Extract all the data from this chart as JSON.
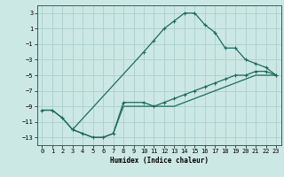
{
  "xlabel": "Humidex (Indice chaleur)",
  "xlim": [
    -0.5,
    23.5
  ],
  "ylim": [
    -14,
    4
  ],
  "xticks": [
    0,
    1,
    2,
    3,
    4,
    5,
    6,
    7,
    8,
    9,
    10,
    11,
    12,
    13,
    14,
    15,
    16,
    17,
    18,
    19,
    20,
    21,
    22,
    23
  ],
  "yticks": [
    -13,
    -11,
    -9,
    -7,
    -5,
    -3,
    -1,
    1,
    3
  ],
  "background_color": "#cce8e4",
  "grid_color": "#aacfcb",
  "line_color": "#1e6b5e",
  "line1_x": [
    0,
    1,
    2,
    3,
    10,
    11,
    12,
    13,
    14,
    15,
    16,
    17,
    18,
    19,
    20,
    21,
    22,
    23
  ],
  "line1_y": [
    -9.5,
    -9.5,
    -10.5,
    -12.0,
    -2.0,
    -0.5,
    1.0,
    2.0,
    3.0,
    3.0,
    1.5,
    0.5,
    -1.5,
    -1.5,
    -3.0,
    -3.5,
    -4.0,
    -5.0
  ],
  "line2_x": [
    3,
    4,
    5,
    6,
    7,
    8,
    10,
    11,
    12,
    13,
    14,
    15,
    16,
    17,
    18,
    19,
    20,
    21,
    22,
    23
  ],
  "line2_y": [
    -12.0,
    -12.5,
    -13.0,
    -13.0,
    -12.5,
    -8.5,
    -8.5,
    -9.0,
    -8.5,
    -8.0,
    -7.5,
    -7.0,
    -6.5,
    -6.0,
    -5.5,
    -5.0,
    -5.0,
    -4.5,
    -4.5,
    -5.0
  ],
  "line3_x": [
    0,
    1,
    2,
    3,
    4,
    5,
    6,
    7,
    8,
    9,
    10,
    11,
    12,
    13,
    14,
    15,
    16,
    17,
    18,
    19,
    20,
    21,
    22,
    23
  ],
  "line3_y": [
    -9.5,
    -9.5,
    -10.5,
    -12.0,
    -12.5,
    -13.0,
    -13.0,
    -12.5,
    -9.0,
    -9.0,
    -9.0,
    -9.0,
    -9.0,
    -9.0,
    -8.5,
    -8.0,
    -7.5,
    -7.0,
    -6.5,
    -6.0,
    -5.5,
    -5.0,
    -5.0,
    -5.0
  ]
}
